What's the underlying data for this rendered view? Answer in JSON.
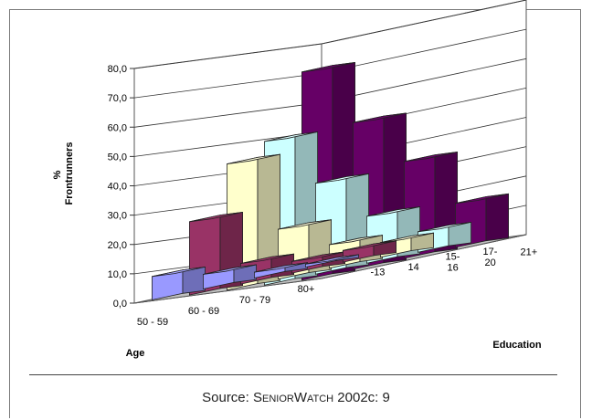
{
  "chart_data": {
    "type": "bar",
    "subtype": "3d-clustered",
    "ylabel": "% Frontrunners",
    "ylabel_lines": [
      "%",
      "Frontrunners"
    ],
    "xlabel": "Age",
    "zlabel": "Education",
    "ylim": [
      0,
      80
    ],
    "yticks": [
      "0,0",
      "10,0",
      "20,0",
      "30,0",
      "40,0",
      "50,0",
      "60,0",
      "70,0",
      "80,0"
    ],
    "grid": true,
    "categories": [
      "50 - 59",
      "60 - 69",
      "70 - 79",
      "80+"
    ],
    "series": [
      {
        "name": "-13",
        "values": [
          8,
          5,
          2,
          1
        ],
        "color": "#9999ff"
      },
      {
        "name": "14",
        "values": [
          25,
          7,
          4,
          4
        ],
        "color": "#993366"
      },
      {
        "name": "15-16",
        "values": [
          43,
          17,
          8,
          5
        ],
        "color": "#ffffcc"
      },
      {
        "name": "17-20",
        "values": [
          49,
          31,
          16,
          7
        ],
        "color": "#ccffff"
      },
      {
        "name": "21+",
        "values": [
          71,
          50,
          33,
          15
        ],
        "color": "#660066"
      }
    ],
    "education_tick_lines": [
      [
        "-13"
      ],
      [
        "14"
      ],
      [
        "15-",
        "16"
      ],
      [
        "17-",
        "20"
      ],
      [
        "21+"
      ]
    ]
  },
  "source": {
    "prefix": "Source: ",
    "name": "SeniorWatch",
    "suffix": " 2002c: 9"
  }
}
